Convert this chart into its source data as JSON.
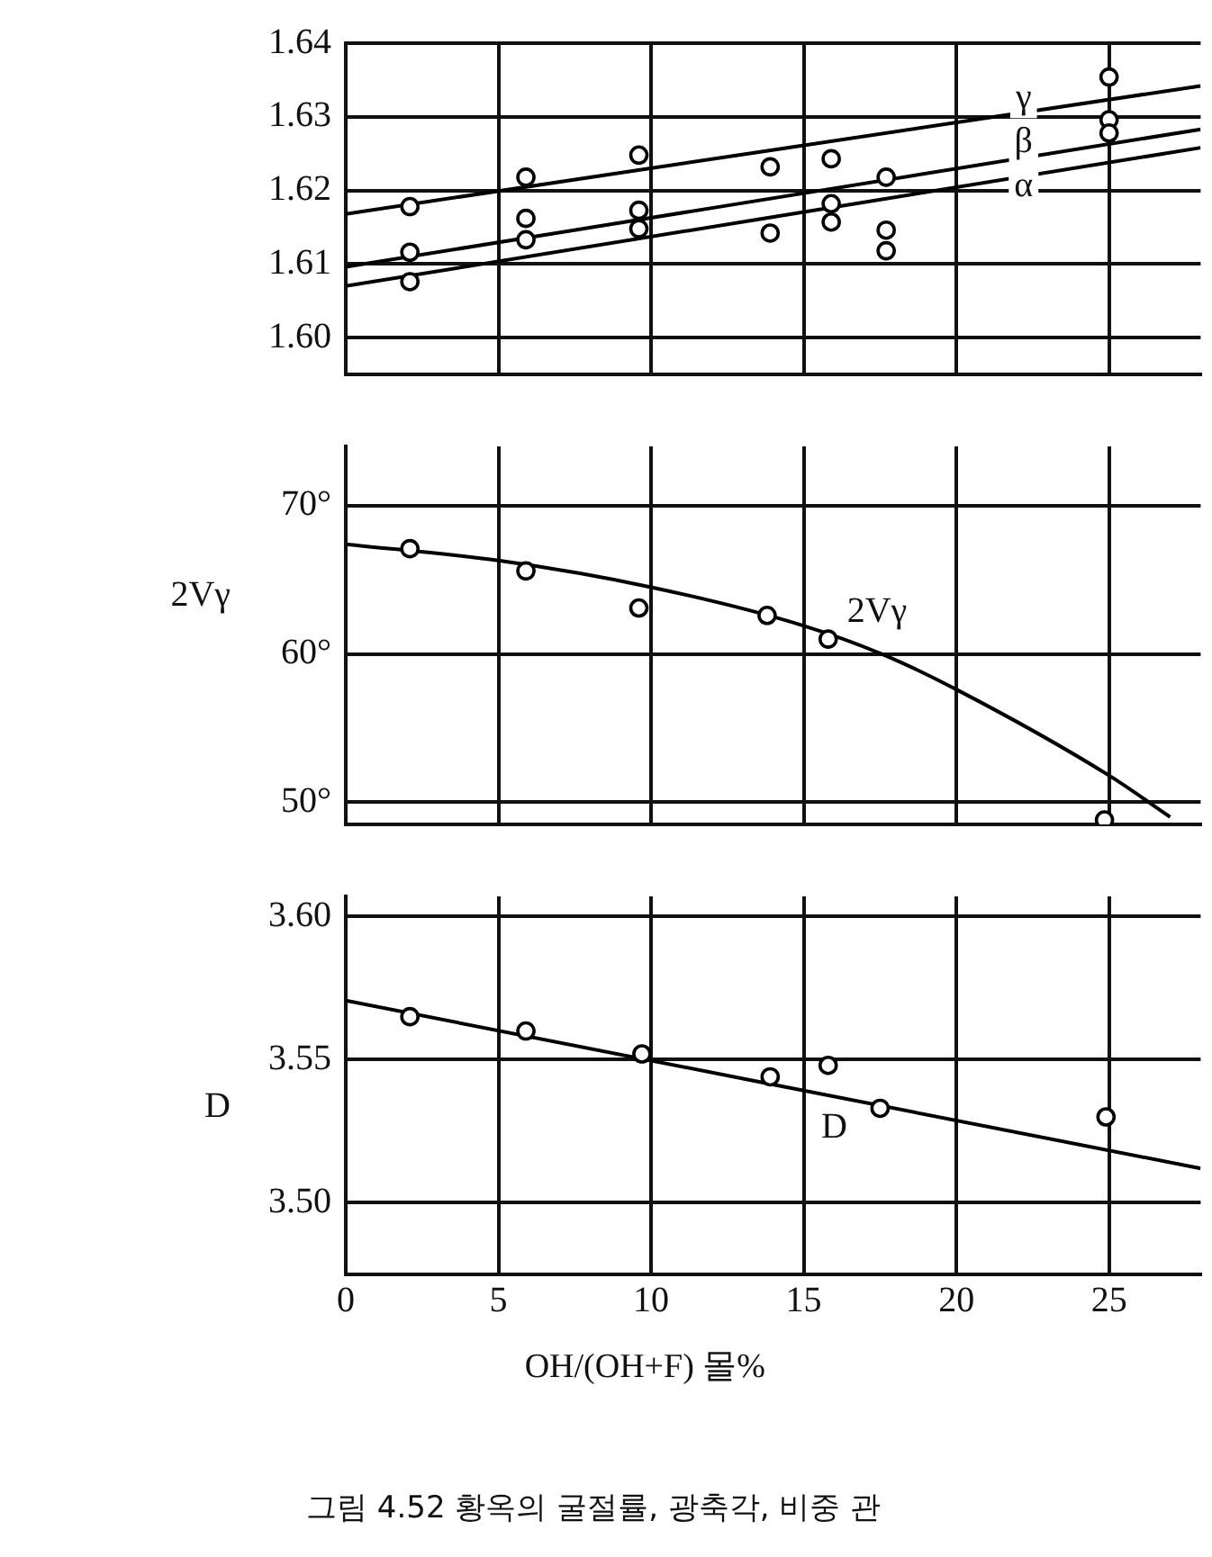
{
  "chart_data": [
    {
      "type": "scatter",
      "xlim": [
        0,
        28
      ],
      "xticks": [
        0,
        5,
        10,
        15,
        20,
        25
      ],
      "ylim": [
        1.595,
        1.64
      ],
      "yticks": [
        {
          "value": 1.6,
          "label": "1.60"
        },
        1.61,
        1.62,
        1.63,
        1.64
      ],
      "grid": true,
      "tick_labels": "y",
      "legend": false,
      "series": [
        {
          "type": "scatter",
          "marker": "circle",
          "color": "#000000",
          "x": [
            2.1,
            2.1,
            2.1,
            5.9,
            5.9,
            5.9,
            9.6,
            9.6,
            9.6,
            13.9,
            13.9,
            15.9,
            15.9,
            15.9,
            17.7,
            17.7,
            17.7,
            25,
            25,
            25
          ],
          "values": [
            1.6178,
            1.6116,
            1.6076,
            1.6218,
            1.6162,
            1.6133,
            1.6248,
            1.6173,
            1.6148,
            1.6232,
            1.6142,
            1.6243,
            1.6182,
            1.6157,
            1.6218,
            1.6146,
            1.6118,
            1.6354,
            1.6296,
            1.6278
          ]
        },
        {
          "type": "line",
          "marker": "none",
          "color": "#000000",
          "x": [
            0,
            28
          ],
          "values": [
            1.6168,
            1.6342
          ]
        },
        {
          "type": "line",
          "marker": "none",
          "color": "#000000",
          "x": [
            0,
            28
          ],
          "values": [
            1.6096,
            1.6283
          ]
        },
        {
          "type": "line",
          "marker": "none",
          "color": "#000000",
          "x": [
            0,
            28
          ],
          "values": [
            1.607,
            1.6258
          ]
        }
      ],
      "annotations": [
        {
          "text": "γ",
          "x": 22.2,
          "y": 1.6325
        },
        {
          "text": "β",
          "x": 22.2,
          "y": 1.6265
        },
        {
          "text": "α",
          "x": 22.2,
          "y": 1.6205
        }
      ]
    },
    {
      "type": "scatter",
      "xlim": [
        0,
        28
      ],
      "xticks": [
        0,
        5,
        10,
        15,
        20,
        25
      ],
      "ylim": [
        48.5,
        74
      ],
      "yticks": [
        {
          "value": 50,
          "label": "50°"
        },
        {
          "value": 60,
          "label": "60°"
        },
        {
          "value": 70,
          "label": "70°"
        }
      ],
      "grid": true,
      "tick_labels": "y",
      "legend": false,
      "ylabel": "2Vγ",
      "series": [
        {
          "type": "scatter",
          "marker": "circle",
          "color": "#000000",
          "x": [
            2.1,
            5.9,
            9.6,
            13.8,
            15.8,
            24.85
          ],
          "values": [
            67.1,
            65.6,
            63.1,
            62.6,
            61.0,
            48.8
          ]
        },
        {
          "type": "line",
          "marker": "none",
          "color": "#000000",
          "x": [
            0,
            5,
            10,
            15,
            17.55,
            20,
            25,
            27
          ],
          "values": [
            67.4,
            66.3,
            64.5,
            61.9,
            60.0,
            57.6,
            51.8,
            49
          ]
        }
      ],
      "annotations": [
        {
          "text": "2Vγ",
          "x": 17.4,
          "y": 62.8
        }
      ]
    },
    {
      "type": "scatter",
      "xlim": [
        0,
        28
      ],
      "xticks": [
        0,
        5,
        10,
        15,
        20,
        25
      ],
      "ylim": [
        3.475,
        3.607
      ],
      "yticks": [
        {
          "value": 3.5,
          "label": "3.50"
        },
        3.55,
        {
          "value": 3.6,
          "label": "3.60"
        }
      ],
      "grid": true,
      "legend": false,
      "ylabel": "D",
      "xlabel": "OH/(OH+F) 몰%",
      "series": [
        {
          "type": "scatter",
          "marker": "circle",
          "color": "#000000",
          "x": [
            2.1,
            5.9,
            9.7,
            13.9,
            15.8,
            17.5,
            24.9
          ],
          "values": [
            3.565,
            3.56,
            3.552,
            3.544,
            3.548,
            3.533,
            3.53
          ]
        },
        {
          "type": "line",
          "marker": "none",
          "color": "#000000",
          "x": [
            0,
            28
          ],
          "values": [
            3.5706,
            3.512
          ]
        }
      ],
      "annotations": [
        {
          "text": "D",
          "x": 16,
          "y": 3.526
        },
        "그림 4.52  황옥의 굴절률, 광축각, 비중 관"
      ]
    }
  ]
}
